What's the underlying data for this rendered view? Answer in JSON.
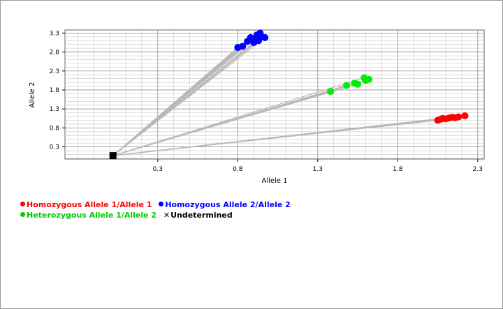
{
  "chart_data": {
    "type": "scatter",
    "title": "",
    "xlabel": "Allele 1",
    "ylabel": "Allele 2",
    "xlim": [
      -0.28,
      2.34
    ],
    "ylim": [
      -0.02,
      3.38
    ],
    "x_ticks": [
      0.3,
      0.8,
      1.3,
      1.8,
      2.3
    ],
    "y_ticks": [
      0.3,
      0.8,
      1.3,
      1.8,
      2.3,
      2.8,
      3.3
    ],
    "grid": true,
    "legend_position": "bottom-left",
    "origin": {
      "x": 0.02,
      "y": 0.07
    },
    "series": [
      {
        "name": "Homozygous Allele 1/Allele 1",
        "color": "#ff0000",
        "marker": "circle",
        "points": [
          [
            2.05,
            1.0
          ],
          [
            2.07,
            1.03
          ],
          [
            2.08,
            1.05
          ],
          [
            2.1,
            1.04
          ],
          [
            2.12,
            1.06
          ],
          [
            2.14,
            1.08
          ],
          [
            2.16,
            1.07
          ],
          [
            2.18,
            1.09
          ],
          [
            2.22,
            1.12
          ]
        ]
      },
      {
        "name": "Homozygous Allele 2/Allele 2",
        "color": "#0000ff",
        "marker": "circle",
        "points": [
          [
            0.8,
            2.92
          ],
          [
            0.83,
            2.95
          ],
          [
            0.86,
            3.08
          ],
          [
            0.88,
            3.18
          ],
          [
            0.9,
            3.05
          ],
          [
            0.91,
            3.15
          ],
          [
            0.92,
            3.25
          ],
          [
            0.94,
            3.3
          ],
          [
            0.95,
            3.2
          ],
          [
            0.97,
            3.18
          ],
          [
            0.93,
            3.1
          ]
        ]
      },
      {
        "name": "Heterozygous Allele 1/Allele 2",
        "color": "#00ee00",
        "marker": "circle",
        "points": [
          [
            1.38,
            1.76
          ],
          [
            1.48,
            1.92
          ],
          [
            1.53,
            1.98
          ],
          [
            1.55,
            1.95
          ],
          [
            1.59,
            2.12
          ],
          [
            1.6,
            2.05
          ],
          [
            1.62,
            2.08
          ]
        ]
      },
      {
        "name": "Undetermined",
        "color": "#000000",
        "marker": "x",
        "points": [
          [
            0.02,
            0.07
          ]
        ]
      }
    ]
  }
}
